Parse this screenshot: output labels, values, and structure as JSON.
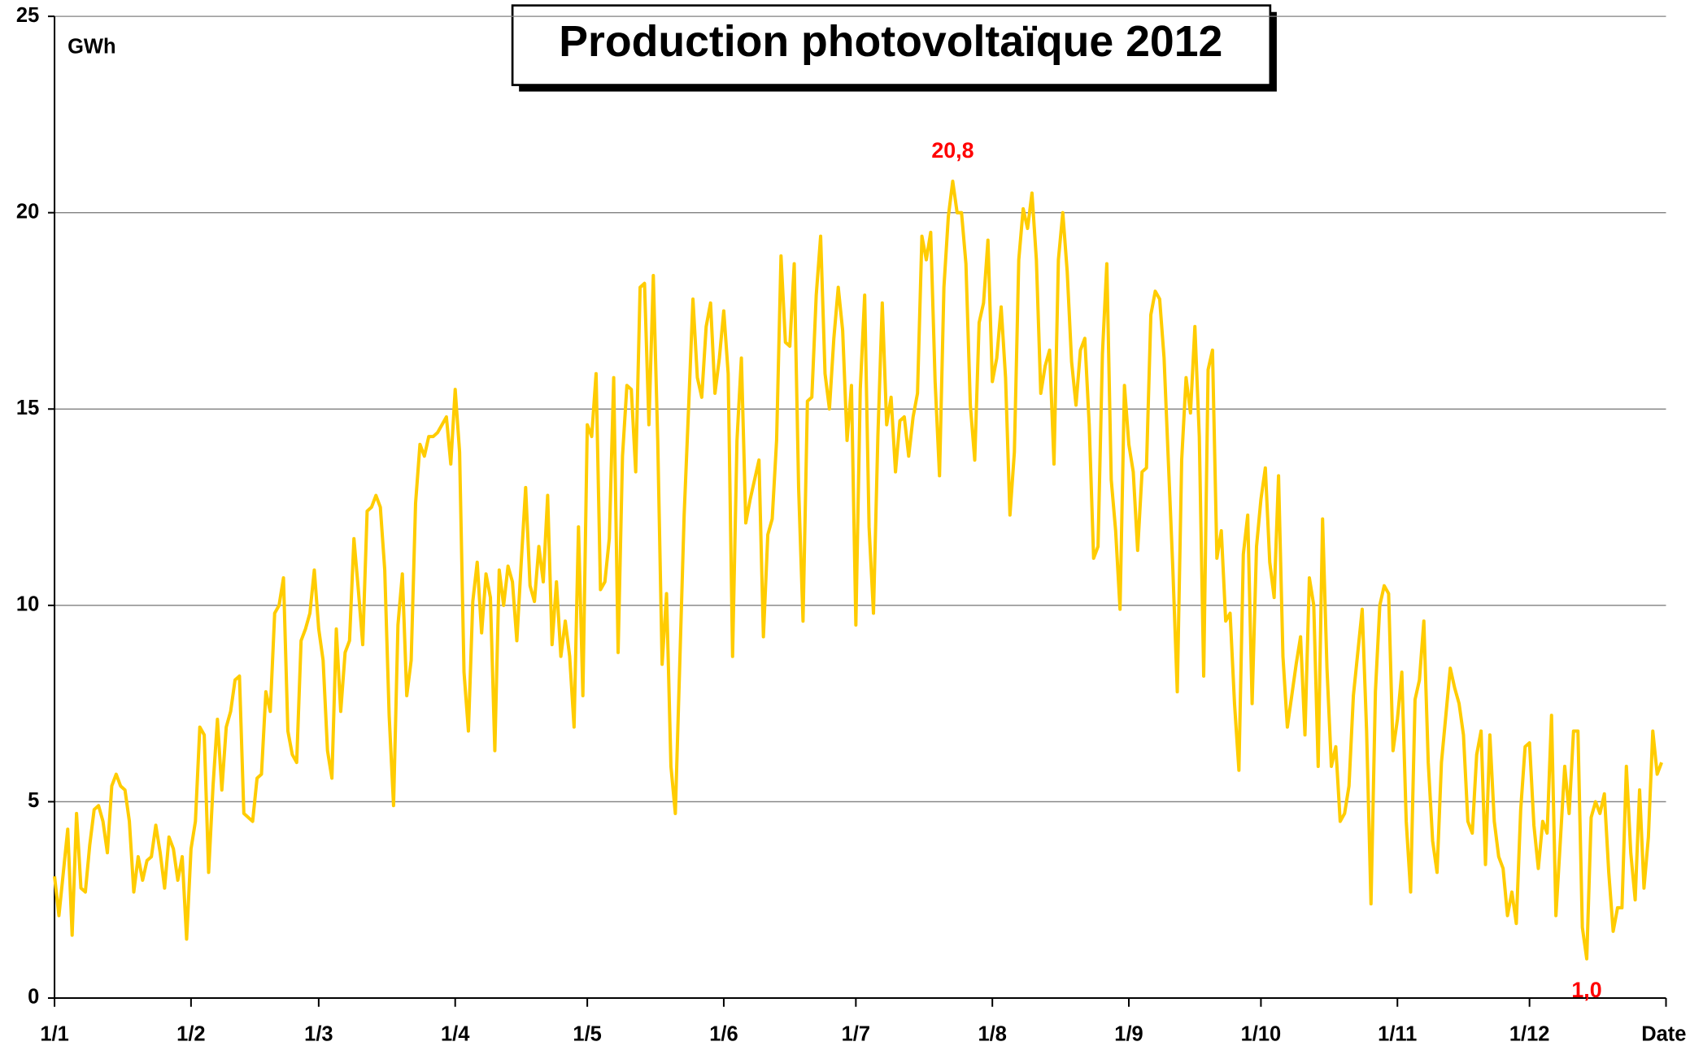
{
  "chart_data": {
    "type": "line",
    "title": "Production photovoltaïque 2012",
    "ylabel": "GWh",
    "xlabel": "Date",
    "xlim": [
      0,
      366
    ],
    "ylim": [
      0,
      25
    ],
    "yticks": [
      0,
      5,
      10,
      15,
      20,
      25
    ],
    "grid": true,
    "xticks": [
      {
        "value": 0,
        "label": "1/1"
      },
      {
        "value": 31,
        "label": "1/2"
      },
      {
        "value": 60,
        "label": "1/3"
      },
      {
        "value": 91,
        "label": "1/4"
      },
      {
        "value": 121,
        "label": "1/5"
      },
      {
        "value": 152,
        "label": "1/6"
      },
      {
        "value": 182,
        "label": "1/7"
      },
      {
        "value": 213,
        "label": "1/8"
      },
      {
        "value": 244,
        "label": "1/9"
      },
      {
        "value": 274,
        "label": "1/10"
      },
      {
        "value": 305,
        "label": "1/11"
      },
      {
        "value": 335,
        "label": "1/12"
      }
    ],
    "annotations": [
      {
        "label": "20,8",
        "x": 204,
        "value": 20.8
      },
      {
        "label": "1,0",
        "x": 348,
        "value": 1.0
      }
    ],
    "series": [
      {
        "name": "Production",
        "color": "#ffcc00",
        "x": [
          0,
          1,
          2,
          3,
          4,
          5,
          6,
          7,
          8,
          9,
          10,
          11,
          12,
          13,
          14,
          15,
          16,
          17,
          18,
          19,
          20,
          21,
          22,
          23,
          24,
          25,
          26,
          27,
          28,
          29,
          30,
          31,
          32,
          33,
          34,
          35,
          36,
          37,
          38,
          39,
          40,
          41,
          42,
          43,
          44,
          45,
          46,
          47,
          48,
          49,
          50,
          51,
          52,
          53,
          54,
          55,
          56,
          57,
          58,
          59,
          60,
          61,
          62,
          63,
          64,
          65,
          66,
          67,
          68,
          69,
          70,
          71,
          72,
          73,
          74,
          75,
          76,
          77,
          78,
          79,
          80,
          81,
          82,
          83,
          84,
          85,
          86,
          87,
          88,
          89,
          90,
          91,
          92,
          93,
          94,
          95,
          96,
          97,
          98,
          99,
          100,
          101,
          102,
          103,
          104,
          105,
          106,
          107,
          108,
          109,
          110,
          111,
          112,
          113,
          114,
          115,
          116,
          117,
          118,
          119,
          120,
          121,
          122,
          123,
          124,
          125,
          126,
          127,
          128,
          129,
          130,
          131,
          132,
          133,
          134,
          135,
          136,
          137,
          138,
          139,
          140,
          141,
          142,
          143,
          144,
          145,
          146,
          147,
          148,
          149,
          150,
          151,
          152,
          153,
          154,
          155,
          156,
          157,
          158,
          159,
          160,
          161,
          162,
          163,
          164,
          165,
          166,
          167,
          168,
          169,
          170,
          171,
          172,
          173,
          174,
          175,
          176,
          177,
          178,
          179,
          180,
          181,
          182,
          183,
          184,
          185,
          186,
          187,
          188,
          189,
          190,
          191,
          192,
          193,
          194,
          195,
          196,
          197,
          198,
          199,
          200,
          201,
          202,
          203,
          204,
          205,
          206,
          207,
          208,
          209,
          210,
          211,
          212,
          213,
          214,
          215,
          216,
          217,
          218,
          219,
          220,
          221,
          222,
          223,
          224,
          225,
          226,
          227,
          228,
          229,
          230,
          231,
          232,
          233,
          234,
          235,
          236,
          237,
          238,
          239,
          240,
          241,
          242,
          243,
          244,
          245,
          246,
          247,
          248,
          249,
          250,
          251,
          252,
          253,
          254,
          255,
          256,
          257,
          258,
          259,
          260,
          261,
          262,
          263,
          264,
          265,
          266,
          267,
          268,
          269,
          270,
          271,
          272,
          273,
          274,
          275,
          276,
          277,
          278,
          279,
          280,
          281,
          282,
          283,
          284,
          285,
          286,
          287,
          288,
          289,
          290,
          291,
          292,
          293,
          294,
          295,
          296,
          297,
          298,
          299,
          300,
          301,
          302,
          303,
          304,
          305,
          306,
          307,
          308,
          309,
          310,
          311,
          312,
          313,
          314,
          315,
          316,
          317,
          318,
          319,
          320,
          321,
          322,
          323,
          324,
          325,
          326,
          327,
          328,
          329,
          330,
          331,
          332,
          333,
          334,
          335,
          336,
          337,
          338,
          339,
          340,
          341,
          342,
          343,
          344,
          345,
          346,
          347,
          348,
          349,
          350,
          351,
          352,
          353,
          354,
          355,
          356,
          357,
          358,
          359,
          360,
          361,
          362,
          363,
          364,
          365
        ],
        "values": [
          3.1,
          2.1,
          3.2,
          4.3,
          1.6,
          4.7,
          2.8,
          2.7,
          3.9,
          4.8,
          4.9,
          4.5,
          3.7,
          5.4,
          5.7,
          5.4,
          5.3,
          4.5,
          2.7,
          3.6,
          3.0,
          3.5,
          3.6,
          4.4,
          3.7,
          2.8,
          4.1,
          3.8,
          3.0,
          3.6,
          1.5,
          3.8,
          4.5,
          6.9,
          6.7,
          3.2,
          5.4,
          7.1,
          5.3,
          6.9,
          7.3,
          8.1,
          8.2,
          4.7,
          4.6,
          4.5,
          5.6,
          5.7,
          7.8,
          7.3,
          9.8,
          10.0,
          10.7,
          6.8,
          6.2,
          6.0,
          9.1,
          9.4,
          9.8,
          10.9,
          9.4,
          8.6,
          6.3,
          5.6,
          9.4,
          7.3,
          8.8,
          9.1,
          11.7,
          10.4,
          9.0,
          12.4,
          12.5,
          12.8,
          12.5,
          10.9,
          7.2,
          4.9,
          9.5,
          10.8,
          7.7,
          8.6,
          12.6,
          14.1,
          13.8,
          14.3,
          14.3,
          14.4,
          14.6,
          14.8,
          13.6,
          15.5,
          13.9,
          8.3,
          6.8,
          10.1,
          11.1,
          9.3,
          10.8,
          10.2,
          6.3,
          10.9,
          10.0,
          11.0,
          10.6,
          9.1,
          11.1,
          13.0,
          10.5,
          10.1,
          11.5,
          10.6,
          12.8,
          9.0,
          10.6,
          8.7,
          9.6,
          8.7,
          6.9,
          12.0,
          7.7,
          14.6,
          14.3,
          15.9,
          10.4,
          10.6,
          11.7,
          15.8,
          8.8,
          13.8,
          15.6,
          15.5,
          13.4,
          18.1,
          18.2,
          14.6,
          18.4,
          14.2,
          8.5,
          10.3,
          5.9,
          4.7,
          8.5,
          12.3,
          15.0,
          17.8,
          15.8,
          15.3,
          17.1,
          17.7,
          15.4,
          16.3,
          17.5,
          15.9,
          8.7,
          14.2,
          16.3,
          12.1,
          12.7,
          13.2,
          13.7,
          9.2,
          11.8,
          12.2,
          14.2,
          18.9,
          16.7,
          16.6,
          18.7,
          13.0,
          9.6,
          15.2,
          15.3,
          17.9,
          19.4,
          15.9,
          15.0,
          16.8,
          18.1,
          17.0,
          14.2,
          15.6,
          9.5,
          15.5,
          17.9,
          12.0,
          9.8,
          14.3,
          17.7,
          14.6,
          15.3,
          13.4,
          14.7,
          14.8,
          13.8,
          14.8,
          15.4,
          19.4,
          18.8,
          19.5,
          15.7,
          13.3,
          18.1,
          19.9,
          20.8,
          20.0,
          20.0,
          18.7,
          15.1,
          13.7,
          17.2,
          17.7,
          19.3,
          15.7,
          16.3,
          17.6,
          15.8,
          12.3,
          13.9,
          18.8,
          20.1,
          19.6,
          20.5,
          18.8,
          15.4,
          16.1,
          16.5,
          13.6,
          18.8,
          20.0,
          18.5,
          16.2,
          15.1,
          16.5,
          16.8,
          14.6,
          11.2,
          11.5,
          16.4,
          18.7,
          13.2,
          11.9,
          9.9,
          15.6,
          14.1,
          13.4,
          11.4,
          13.4,
          13.5,
          17.4,
          18.0,
          17.8,
          16.3,
          13.6,
          10.9,
          7.8,
          13.7,
          15.8,
          14.9,
          17.1,
          14.3,
          8.2,
          16.0,
          16.5,
          11.2,
          11.9,
          9.6,
          9.8,
          7.5,
          5.8,
          11.3,
          12.3,
          7.5,
          11.5,
          12.7,
          13.5,
          11.1,
          10.2,
          13.3,
          8.7,
          6.9,
          7.7,
          8.5,
          9.2,
          6.7,
          10.7,
          10.0,
          5.9,
          12.2,
          8.4,
          5.9,
          6.4,
          4.5,
          4.7,
          5.4,
          7.7,
          8.8,
          9.9,
          6.8,
          2.4,
          7.8,
          10.0,
          10.5,
          10.3,
          6.3,
          7.1,
          8.3,
          4.5,
          2.7,
          7.6,
          8.1,
          9.6,
          6.0,
          4.0,
          3.2,
          6.0,
          7.2,
          8.4,
          7.9,
          7.5,
          6.7,
          4.5,
          4.2,
          6.2,
          6.8,
          3.4,
          6.7,
          4.5,
          3.6,
          3.3,
          2.1,
          2.7,
          1.9,
          4.8,
          6.4,
          6.5,
          4.4,
          3.3,
          4.5,
          4.2,
          7.2,
          2.1,
          4.0,
          5.9,
          4.7,
          6.8,
          6.8,
          1.8,
          1.0,
          4.6,
          5.0,
          4.7,
          5.2,
          3.2,
          1.7,
          2.3,
          2.3,
          5.9,
          3.7,
          2.5,
          5.3,
          2.8,
          4.1,
          6.8,
          5.7,
          6.0
        ]
      }
    ]
  }
}
